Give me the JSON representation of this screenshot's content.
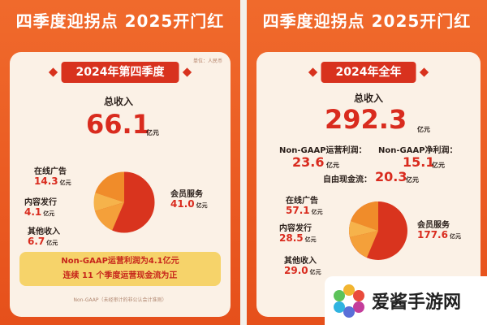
{
  "left": {
    "headline": "四季度迎拐点 2025开门红",
    "ribbon": "2024年第四季度",
    "source": "单位：人民币",
    "total_label": "总收入",
    "total_value": "66.1",
    "total_unit": "亿元",
    "segments": [
      {
        "name": "在线广告",
        "value": "14.3",
        "unit": "亿元"
      },
      {
        "name": "内容发行",
        "value": "4.1",
        "unit": "亿元"
      },
      {
        "name": "其他收入",
        "value": "6.7",
        "unit": "亿元"
      },
      {
        "name": "会员服务",
        "value": "41.0",
        "unit": "亿元"
      }
    ],
    "note_line1": "Non-GAAP运营利润为4.1亿元",
    "note_line2": "连续 11 个季度运营现金流为正",
    "footnote": "Non-GAAP（未经审计的非公认会计准则）"
  },
  "right": {
    "headline": "四季度迎拐点 2025开门红",
    "ribbon": "2024年全年",
    "total_label": "总收入",
    "total_value": "292.3",
    "total_unit": "亿元",
    "op_profit_label": "Non-GAAP运营利润：",
    "op_profit_value": "23.6",
    "op_profit_unit": "亿元",
    "net_profit_label": "Non-GAAP净利润：",
    "net_profit_value": "15.1",
    "net_profit_unit": "亿元",
    "fcf_label": "自由现金流：",
    "fcf_value": "20.3",
    "fcf_unit": "亿元",
    "segments": [
      {
        "name": "在线广告",
        "value": "57.1",
        "unit": "亿元"
      },
      {
        "name": "内容发行",
        "value": "28.5",
        "unit": "亿元"
      },
      {
        "name": "其他收入",
        "value": "29.0",
        "unit": "亿元"
      },
      {
        "name": "会员服务",
        "value": "177.6",
        "unit": "亿元"
      }
    ]
  },
  "watermark": {
    "text": "爱酱手游网"
  },
  "colors": {
    "background": "#e8541f",
    "card": "#fbf1e6",
    "accent_red": "#d92b1e",
    "ribbon": "#d8321e",
    "note_yellow": "#f6d36a"
  }
}
